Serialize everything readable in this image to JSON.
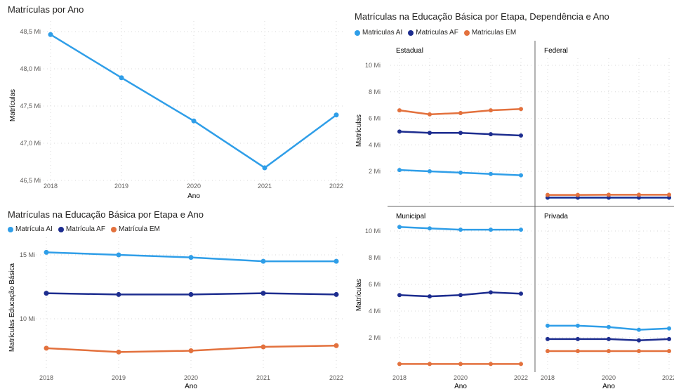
{
  "colors": {
    "ai": "#2f9ee8",
    "af": "#1d2d8f",
    "em": "#e3713d",
    "single": "#2f9ee8",
    "grid": "#d9d9d9",
    "divider": "#666666",
    "tick": "#605e5c"
  },
  "chart_data": [
    {
      "id": "por-ano",
      "type": "line",
      "title": "Matrículas por Ano",
      "xlabel": "Ano",
      "ylabel": "Matrículas",
      "x": [
        "2018",
        "2019",
        "2020",
        "2021",
        "2022"
      ],
      "y_ticks": [
        "48,5 Mi",
        "48,0 Mi",
        "47,5 Mi",
        "47,0 Mi",
        "46,5 Mi"
      ],
      "ylim": [
        46.5,
        48.5
      ],
      "y_tick_values": [
        48.5,
        48.0,
        47.5,
        47.0,
        46.5
      ],
      "series": [
        {
          "values": [
            48.46,
            47.88,
            47.3,
            46.67,
            47.38
          ]
        }
      ]
    },
    {
      "id": "etapa-ano",
      "type": "line",
      "title": "Matrículas na Educação Básica por Etapa e Ano",
      "xlabel": "Ano",
      "ylabel": "Matrículas Educação Básica",
      "x": [
        "2018",
        "2019",
        "2020",
        "2021",
        "2022"
      ],
      "y_ticks": [
        "15 Mi",
        "10 Mi"
      ],
      "y_tick_values": [
        15,
        10
      ],
      "ylim": [
        6.5,
        16.5
      ],
      "legend": [
        "Matrícula AI",
        "Matrícula AF",
        "Matrícula EM"
      ],
      "series": [
        {
          "name": "Matrícula AI",
          "values": [
            15.2,
            15.0,
            14.8,
            14.5,
            14.5
          ]
        },
        {
          "name": "Matrícula AF",
          "values": [
            12.0,
            11.9,
            11.9,
            12.0,
            11.9
          ]
        },
        {
          "name": "Matrícula EM",
          "values": [
            7.7,
            7.4,
            7.5,
            7.8,
            7.9
          ]
        }
      ]
    },
    {
      "id": "etapa-dependencia",
      "type": "line",
      "title": "Matrículas na Educação Básica por Etapa, Dependência e Ano",
      "xlabel": "Ano",
      "ylabel": "Matrículas",
      "legend": [
        "Matriculas AI",
        "Matriculas AF",
        "Matriculas EM"
      ],
      "x": [
        "2018",
        "2019",
        "2020",
        "2021",
        "2022"
      ],
      "y_ticks": [
        "10 Mi",
        "8 Mi",
        "6 Mi",
        "4 Mi",
        "2 Mi"
      ],
      "y_tick_values": [
        10,
        8,
        6,
        4,
        2
      ],
      "ylim": [
        0,
        10.5
      ],
      "panels": [
        {
          "name": "Estadual",
          "series": [
            {
              "name": "Matriculas AI",
              "values": [
                2.1,
                2.0,
                1.9,
                1.8,
                1.7
              ]
            },
            {
              "name": "Matriculas AF",
              "values": [
                5.0,
                4.9,
                4.9,
                4.8,
                4.7
              ]
            },
            {
              "name": "Matriculas EM",
              "values": [
                6.6,
                6.3,
                6.4,
                6.6,
                6.7
              ]
            }
          ]
        },
        {
          "name": "Federal",
          "series": [
            {
              "name": "Matriculas AI",
              "values": [
                0.01,
                0.01,
                0.01,
                0.01,
                0.01
              ]
            },
            {
              "name": "Matriculas AF",
              "values": [
                0.02,
                0.02,
                0.02,
                0.02,
                0.02
              ]
            },
            {
              "name": "Matriculas EM",
              "values": [
                0.22,
                0.22,
                0.23,
                0.23,
                0.23
              ]
            }
          ]
        },
        {
          "name": "Municipal",
          "series": [
            {
              "name": "Matriculas AI",
              "values": [
                10.3,
                10.2,
                10.1,
                10.1,
                10.1
              ]
            },
            {
              "name": "Matriculas AF",
              "values": [
                5.2,
                5.1,
                5.2,
                5.4,
                5.3
              ]
            },
            {
              "name": "Matriculas EM",
              "values": [
                0.03,
                0.03,
                0.03,
                0.03,
                0.03
              ]
            }
          ]
        },
        {
          "name": "Privada",
          "series": [
            {
              "name": "Matriculas AI",
              "values": [
                2.9,
                2.9,
                2.8,
                2.6,
                2.7
              ]
            },
            {
              "name": "Matriculas AF",
              "values": [
                1.9,
                1.9,
                1.9,
                1.8,
                1.9
              ]
            },
            {
              "name": "Matriculas EM",
              "values": [
                1.0,
                1.0,
                1.0,
                1.0,
                1.0
              ]
            }
          ]
        }
      ]
    }
  ]
}
